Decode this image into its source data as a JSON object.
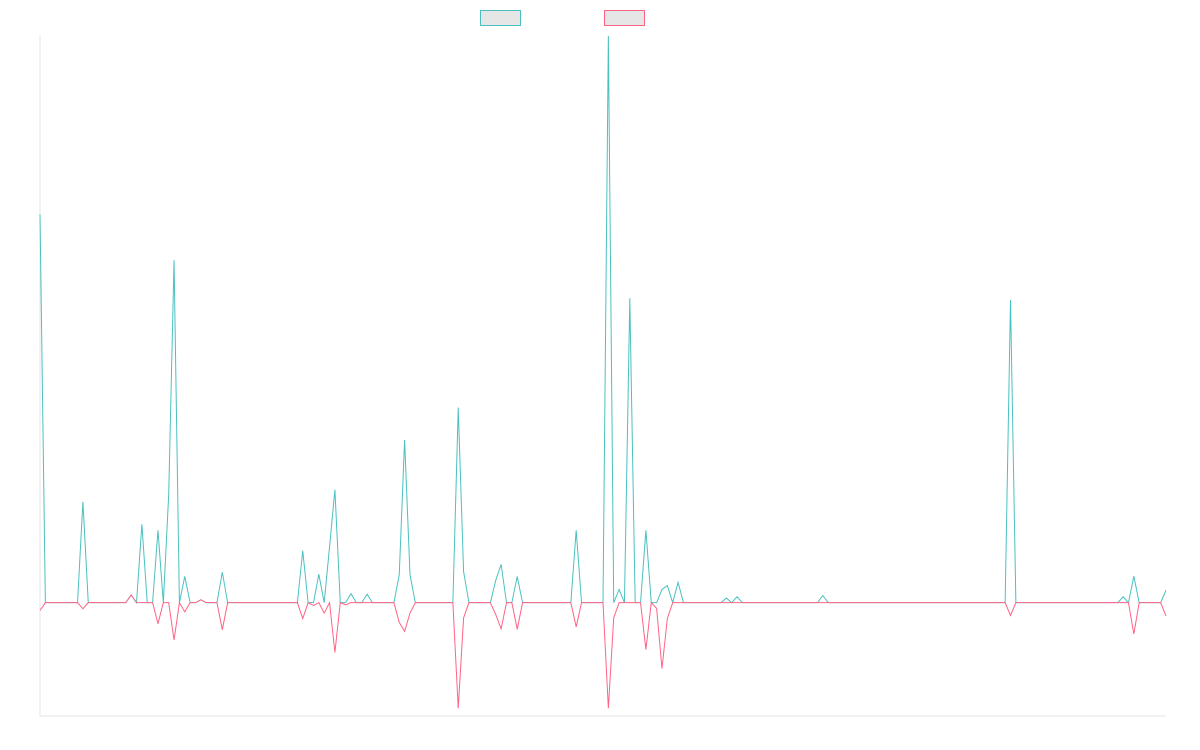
{
  "chart_data": {
    "type": "line",
    "title": "",
    "xlabel": "",
    "ylabel": "",
    "ylim": [
      -0.2,
      1.0
    ],
    "grid": false,
    "legend": "top-center",
    "x_count": 211,
    "series": [
      {
        "color": "#4bc0c0",
        "fill": "#e6e6e6",
        "points": [
          [
            0,
            0.6855
          ],
          [
            1,
            0.0
          ],
          [
            7,
            0.0
          ],
          [
            8,
            0.1781
          ],
          [
            9,
            0.0
          ],
          [
            16,
            0.0
          ],
          [
            17,
            0.0136
          ],
          [
            18,
            0.0
          ],
          [
            19,
            0.1384
          ],
          [
            20,
            0.0
          ],
          [
            22,
            0.1277
          ],
          [
            23,
            0.0
          ],
          [
            24,
            0.1902
          ],
          [
            25,
            0.6043
          ],
          [
            26,
            0.0
          ],
          [
            27,
            0.0464
          ],
          [
            28,
            0.0
          ],
          [
            29,
            0.0
          ],
          [
            30,
            0.0051
          ],
          [
            31,
            0.0
          ],
          [
            33,
            0.0
          ],
          [
            34,
            0.0538
          ],
          [
            35,
            0.0
          ],
          [
            48,
            0.0
          ],
          [
            49,
            0.0918
          ],
          [
            50,
            0.0
          ],
          [
            51,
            0.0
          ],
          [
            52,
            0.0501
          ],
          [
            53,
            0.0
          ],
          [
            54,
            0.0984
          ],
          [
            55,
            0.1993
          ],
          [
            56,
            0.0
          ],
          [
            57,
            0.0
          ],
          [
            58,
            0.0158
          ],
          [
            59,
            0.0
          ],
          [
            60,
            0.0
          ],
          [
            61,
            0.015
          ],
          [
            62,
            0.0
          ],
          [
            64,
            0.0
          ],
          [
            65,
            0.0
          ],
          [
            66,
            0.0
          ],
          [
            67,
            0.0494
          ],
          [
            68,
            0.2872
          ],
          [
            69,
            0.0499
          ],
          [
            70,
            0.0
          ],
          [
            72,
            0.0
          ],
          [
            73,
            0.0
          ],
          [
            74,
            0.0
          ],
          [
            77,
            0.0
          ],
          [
            78,
            0.3441
          ],
          [
            79,
            0.0549
          ],
          [
            80,
            0.0
          ],
          [
            84,
            0.0
          ],
          [
            85,
            0.0397
          ],
          [
            86,
            0.0676
          ],
          [
            87,
            0.0
          ],
          [
            88,
            0.0
          ],
          [
            89,
            0.0462
          ],
          [
            90,
            0.0
          ],
          [
            99,
            0.0
          ],
          [
            100,
            0.1277
          ],
          [
            101,
            0.0
          ],
          [
            105,
            0.0
          ],
          [
            106,
            1.0
          ],
          [
            107,
            0.0
          ],
          [
            108,
            0.0234
          ],
          [
            109,
            0.0
          ],
          [
            110,
            0.5372
          ],
          [
            111,
            0.0
          ],
          [
            112,
            0.0
          ],
          [
            113,
            0.1277
          ],
          [
            114,
            0.0
          ],
          [
            115,
            0.0
          ],
          [
            116,
            0.0234
          ],
          [
            117,
            0.0301
          ],
          [
            118,
            0.0
          ],
          [
            119,
            0.0358
          ],
          [
            120,
            0.0
          ],
          [
            121,
            0.0
          ],
          [
            122,
            0.0
          ],
          [
            123,
            0.0
          ],
          [
            127,
            0.0
          ],
          [
            128,
            0.0081
          ],
          [
            129,
            0.0
          ],
          [
            130,
            0.0104
          ],
          [
            131,
            0.0
          ],
          [
            145,
            0.0
          ],
          [
            146,
            0.0125
          ],
          [
            147,
            0.0
          ],
          [
            180,
            0.0
          ],
          [
            181,
            0.5342
          ],
          [
            182,
            0.0
          ],
          [
            201,
            0.0
          ],
          [
            202,
            0.0104
          ],
          [
            203,
            0.0
          ],
          [
            204,
            0.0466
          ],
          [
            205,
            0.0
          ],
          [
            209,
            0.0
          ],
          [
            210,
            0.0219
          ]
        ]
      },
      {
        "color": "#ff6384",
        "fill": "#e6e6e6",
        "points": [
          [
            0,
            -0.0136
          ],
          [
            1,
            0.0
          ],
          [
            7,
            0.0
          ],
          [
            8,
            -0.0108
          ],
          [
            9,
            0.0
          ],
          [
            16,
            0.0
          ],
          [
            17,
            0.0136
          ],
          [
            18,
            0.0
          ],
          [
            19,
            0.0
          ],
          [
            20,
            0.0
          ],
          [
            22,
            -0.0371
          ],
          [
            23,
            0.0
          ],
          [
            24,
            0.0
          ],
          [
            25,
            -0.0657
          ],
          [
            26,
            0.0
          ],
          [
            27,
            -0.016
          ],
          [
            28,
            0.0
          ],
          [
            29,
            0.0
          ],
          [
            30,
            0.0051
          ],
          [
            31,
            0.0
          ],
          [
            33,
            0.0
          ],
          [
            34,
            -0.0478
          ],
          [
            35,
            0.0
          ],
          [
            48,
            0.0
          ],
          [
            49,
            -0.0281
          ],
          [
            50,
            0.0
          ],
          [
            51,
            -0.0048
          ],
          [
            52,
            0.0
          ],
          [
            53,
            -0.0184
          ],
          [
            54,
            0.0
          ],
          [
            55,
            -0.0878
          ],
          [
            56,
            0.0
          ],
          [
            57,
            -0.0039
          ],
          [
            58,
            0.0
          ],
          [
            59,
            0.0
          ],
          [
            60,
            0.0
          ],
          [
            61,
            0.0
          ],
          [
            62,
            0.0
          ],
          [
            64,
            0.0
          ],
          [
            65,
            0.0
          ],
          [
            66,
            0.0
          ],
          [
            67,
            -0.0349
          ],
          [
            68,
            -0.0507
          ],
          [
            69,
            -0.0185
          ],
          [
            70,
            0.0
          ],
          [
            72,
            0.0
          ],
          [
            73,
            0.0
          ],
          [
            74,
            0.0
          ],
          [
            77,
            0.0
          ],
          [
            78,
            -0.1863
          ],
          [
            79,
            -0.0267
          ],
          [
            80,
            0.0
          ],
          [
            84,
            0.0
          ],
          [
            85,
            -0.0211
          ],
          [
            86,
            -0.0461
          ],
          [
            87,
            0.0
          ],
          [
            88,
            0.0
          ],
          [
            89,
            -0.0469
          ],
          [
            90,
            0.0
          ],
          [
            99,
            0.0
          ],
          [
            100,
            -0.0428
          ],
          [
            101,
            0.0
          ],
          [
            105,
            0.0
          ],
          [
            106,
            -0.1863
          ],
          [
            107,
            -0.0268
          ],
          [
            108,
            0.0
          ],
          [
            109,
            0.0
          ],
          [
            110,
            0.0
          ],
          [
            111,
            0.0
          ],
          [
            112,
            0.0
          ],
          [
            113,
            -0.0828
          ],
          [
            114,
            0.0
          ],
          [
            115,
            -0.0101
          ],
          [
            116,
            -0.1164
          ],
          [
            117,
            -0.0279
          ],
          [
            118,
            0.0
          ],
          [
            119,
            0.0
          ],
          [
            120,
            0.0
          ],
          [
            121,
            0.0
          ],
          [
            122,
            0.0
          ],
          [
            123,
            0.0
          ],
          [
            127,
            0.0
          ],
          [
            128,
            0.0
          ],
          [
            129,
            0.0
          ],
          [
            130,
            0.0
          ],
          [
            131,
            0.0
          ],
          [
            145,
            0.0
          ],
          [
            146,
            0.0
          ],
          [
            147,
            0.0
          ],
          [
            180,
            0.0
          ],
          [
            181,
            -0.0226
          ],
          [
            182,
            0.0
          ],
          [
            201,
            0.0
          ],
          [
            202,
            0.0
          ],
          [
            203,
            0.0
          ],
          [
            204,
            -0.0552
          ],
          [
            205,
            0.0
          ],
          [
            209,
            0.0
          ],
          [
            210,
            -0.0235
          ]
        ]
      }
    ]
  }
}
